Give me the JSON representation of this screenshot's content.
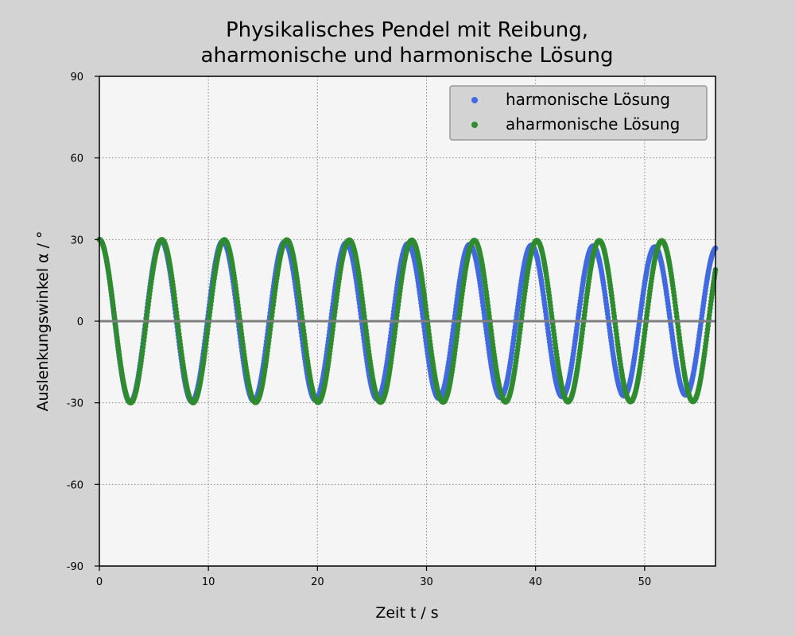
{
  "chart_data": {
    "type": "scatter",
    "title_lines": [
      "Physikalisches Pendel mit Reibung,",
      "aharmonische und harmonische Lösung"
    ],
    "xlabel": "Zeit t / s",
    "ylabel": "Auslenkungswinkel α / °",
    "xlim": [
      0,
      56.5
    ],
    "ylim": [
      -90,
      90
    ],
    "xticks": [
      0,
      10,
      20,
      30,
      40,
      50
    ],
    "yticks": [
      -90,
      -60,
      -30,
      0,
      30,
      60,
      90
    ],
    "grid": true,
    "legend_position": "top-right",
    "zero_line_color": "#808080",
    "series": [
      {
        "name": "harmonische Lösung",
        "color": "#4169e1",
        "amplitude_start": 30,
        "amplitude_end": 27,
        "period": 5.66,
        "phase_deg_start": 0,
        "t_start": 0,
        "t_end": 56.5
      },
      {
        "name": "aharmonische Lösung",
        "color": "#2e8b2e",
        "amplitude_start": 30,
        "amplitude_end": 29.5,
        "period": 5.73,
        "phase_deg_start": 0,
        "t_start": 0,
        "t_end": 56.5
      }
    ]
  }
}
